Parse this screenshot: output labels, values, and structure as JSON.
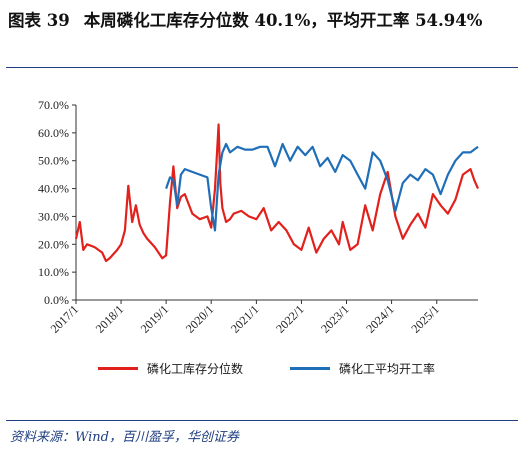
{
  "figure": {
    "label": "图表 39",
    "title": "本周磷化工库存分位数 40.1%，平均开工率 54.94%",
    "source": "资料来源：Wind，百川盈孚，华创证券"
  },
  "colors": {
    "inventory": "#e2211c",
    "utilization": "#1f6fb8",
    "rule": "#1f3f80"
  },
  "chart_data": {
    "type": "line",
    "title": "本周磷化工库存分位数 40.1%，平均开工率 54.94%",
    "xlabel": "",
    "ylabel": "",
    "ylim": [
      0,
      70
    ],
    "xlim": [
      "2017-01-01",
      "2025-12-01"
    ],
    "y_ticks": [
      "0.0%",
      "10.0%",
      "20.0%",
      "30.0%",
      "40.0%",
      "50.0%",
      "60.0%",
      "70.0%"
    ],
    "x_ticks": [
      "2017/1",
      "2018/1",
      "2019/1",
      "2020/1",
      "2021/1",
      "2022/1",
      "2023/1",
      "2024/1",
      "2025/1"
    ],
    "grid": false,
    "legend": "bottom",
    "series": [
      {
        "name": "磷化工库存分位数",
        "color": "#e2211c",
        "x": [
          "2017-01",
          "2017-02",
          "2017-03",
          "2017-04",
          "2017-06",
          "2017-08",
          "2017-09",
          "2017-10",
          "2017-12",
          "2018-01",
          "2018-02",
          "2018-03",
          "2018-04",
          "2018-05",
          "2018-06",
          "2018-07",
          "2018-08",
          "2018-10",
          "2018-12",
          "2019-01",
          "2019-02",
          "2019-03",
          "2019-04",
          "2019-05",
          "2019-06",
          "2019-08",
          "2019-10",
          "2019-12",
          "2020-01",
          "2020-02",
          "2020-03",
          "2020-03-15",
          "2020-04",
          "2020-05",
          "2020-06",
          "2020-07",
          "2020-09",
          "2020-11",
          "2021-01",
          "2021-03",
          "2021-05",
          "2021-07",
          "2021-09",
          "2021-11",
          "2022-01",
          "2022-03",
          "2022-05",
          "2022-07",
          "2022-09",
          "2022-11",
          "2022-12",
          "2023-02",
          "2023-04",
          "2023-06",
          "2023-08",
          "2023-10",
          "2023-12",
          "2024-02",
          "2024-04",
          "2024-06",
          "2024-08",
          "2024-10",
          "2024-12",
          "2025-02",
          "2025-04",
          "2025-06",
          "2025-08",
          "2025-10",
          "2025-11",
          "2025-12"
        ],
        "y": [
          22,
          28,
          18,
          20,
          19,
          17,
          14,
          15,
          18,
          20,
          25,
          41,
          28,
          34,
          27,
          24,
          22,
          19,
          15,
          16,
          35,
          48,
          33,
          37,
          38,
          31,
          29,
          30,
          26,
          40,
          63,
          42,
          33,
          28,
          29,
          31,
          32,
          30,
          29,
          33,
          25,
          28,
          25,
          20,
          18,
          26,
          17,
          22,
          25,
          20,
          28,
          18,
          20,
          34,
          25,
          38,
          46,
          30,
          22,
          27,
          31,
          26,
          38,
          34,
          31,
          36,
          45,
          47,
          43,
          40
        ]
      },
      {
        "name": "磷化工平均开工率",
        "color": "#1f6fb8",
        "x": [
          "2019-01",
          "2019-02",
          "2019-03",
          "2019-04",
          "2019-05",
          "2019-06",
          "2019-08",
          "2019-10",
          "2019-12",
          "2020-01",
          "2020-02",
          "2020-03",
          "2020-04",
          "2020-05",
          "2020-06",
          "2020-08",
          "2020-10",
          "2020-12",
          "2021-02",
          "2021-04",
          "2021-06",
          "2021-08",
          "2021-10",
          "2021-12",
          "2022-02",
          "2022-04",
          "2022-06",
          "2022-08",
          "2022-10",
          "2022-12",
          "2023-02",
          "2023-04",
          "2023-06",
          "2023-08",
          "2023-10",
          "2023-12",
          "2024-02",
          "2024-04",
          "2024-06",
          "2024-08",
          "2024-10",
          "2024-12",
          "2025-02",
          "2025-04",
          "2025-06",
          "2025-08",
          "2025-10",
          "2025-12"
        ],
        "y": [
          40,
          44,
          43,
          34,
          45,
          47,
          46,
          45,
          44,
          33,
          25,
          45,
          53,
          56,
          53,
          55,
          54,
          54,
          55,
          55,
          48,
          56,
          50,
          55,
          52,
          55,
          48,
          51,
          46,
          52,
          50,
          45,
          40,
          53,
          50,
          43,
          32,
          42,
          45,
          43,
          47,
          45,
          38,
          45,
          50,
          53,
          53,
          55
        ]
      }
    ]
  }
}
